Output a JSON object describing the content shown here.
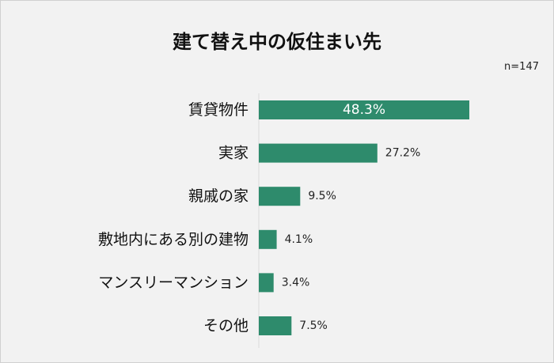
{
  "chart_data": {
    "type": "bar",
    "orientation": "horizontal",
    "title": "建て替え中の仮住まい先",
    "note": "n=147",
    "categories": [
      "賃貸物件",
      "実家",
      "親戚の家",
      "敷地内にある別の建物",
      "マンスリーマンション",
      "その他"
    ],
    "values": [
      48.3,
      27.2,
      9.5,
      4.1,
      3.4,
      7.5
    ],
    "value_labels": [
      "48.3%",
      "27.2%",
      "9.5%",
      "4.1%",
      "3.4%",
      "7.5%"
    ],
    "unit": "%",
    "xlim": [
      0,
      48.3
    ],
    "grid": false,
    "legend": "none",
    "bar_color": "#2e8b6c"
  }
}
